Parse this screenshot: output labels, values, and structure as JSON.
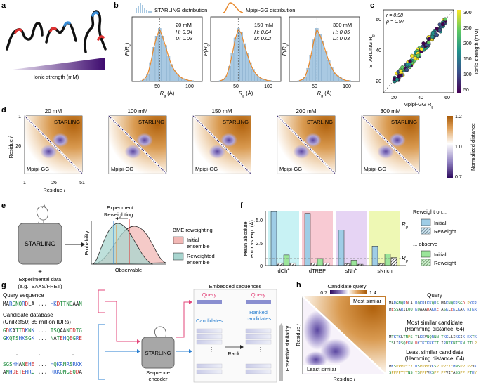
{
  "panels": {
    "a": {
      "label": "a",
      "axis": "Ionic strength (mM)"
    },
    "b": {
      "label": "b",
      "legend_starling": "STARLING distribution",
      "legend_mpipi": "Mpipi-GG distribution",
      "ylabel": "P(R",
      "ylabel_sub": "g",
      "ylabel_end": ")",
      "xlabel": "R",
      "xlabel_sub": "g",
      "xlabel_unit": " (Å)",
      "hists": [
        {
          "conc": "20 mM",
          "H": "H: 0.04",
          "D": "D: 0.03",
          "ticks": [
            "50",
            "100"
          ]
        },
        {
          "conc": "150 mM",
          "H": "H: 0.04",
          "D": "D: 0.02",
          "ticks": [
            "50",
            "100"
          ]
        },
        {
          "conc": "300 mM",
          "H": "H: 0.05",
          "D": "D: 0.03",
          "ticks": [
            "50",
            "100"
          ]
        }
      ],
      "colors": {
        "bar": "#a9c9e2",
        "line": "#e8882b"
      }
    },
    "c": {
      "label": "c",
      "r": "r = 0.98",
      "rho": "ρ = 0.97",
      "ylabel": "STARLING R",
      "ylabel_sub": "g",
      "xlabel": "Mpipi-GG R",
      "xlabel_sub": "g",
      "xticks": [
        "20",
        "40",
        "60"
      ],
      "yticks": [
        "20",
        "40",
        "60"
      ],
      "cbar_title": "Ionic strength (mM)",
      "cbar_ticks": [
        "300",
        "250",
        "200",
        "150",
        "100",
        "50"
      ]
    },
    "d": {
      "label": "d",
      "maps": [
        "20 mM",
        "100 mM",
        "150 mM",
        "200 mM",
        "300 mM"
      ],
      "starling": "STARLING",
      "mpipi": "Mpipi-GG",
      "ylabel": "Residue",
      "ylabel_i": "i",
      "xlabel": "Residue",
      "xlabel_i": "i",
      "ticks": [
        "1",
        "26"
      ],
      "xticks": [
        "1",
        "26",
        "51"
      ],
      "cbar_title": "Normalized distance",
      "cbar_ticks": [
        "1.2",
        "1.0",
        "0.7"
      ]
    },
    "e": {
      "label": "e",
      "box": "STARLING",
      "plus": "+",
      "exp1": "Experimental data",
      "exp2": "(e.g., SAXS/FRET)",
      "experiment": "Experiment",
      "reweighting": "Reweighting",
      "ylabel": "Probability",
      "xlabel": "Observable",
      "legend_title": "BME reweighting",
      "legend_initial1": "Initial",
      "legend_initial2": "ensemble",
      "legend_reweighted1": "Reweighted",
      "legend_reweighted2": "ensemble"
    },
    "f": {
      "label": "f",
      "ylabel1": "Mean absolute",
      "ylabel2": "error vs exp. (Å)",
      "yticks": [
        "5.0",
        "2.5",
        "0"
      ],
      "categories": [
        "dCh",
        "dTRBP",
        "sNh",
        "sNrich"
      ],
      "cat_sup": [
        "+",
        "",
        "+",
        ""
      ],
      "legend_title": "Reweight on...",
      "legend_rg": "R",
      "legend_rg_sub": "g",
      "legend_observe": "... observe",
      "legend_initial": "Initial",
      "legend_reweight": "Reweight"
    },
    "g": {
      "label": "g",
      "query_title": "Query sequence",
      "query": [
        "MARGNQRDLA",
        "...",
        "HKDTTNQAAN"
      ],
      "db_title": "Candidate database",
      "db_sub": "(UniRef50; 35 million IDRs)",
      "db_rows": [
        [
          "GDKATTDKNK",
          "...",
          "TSQAANDDTG"
        ],
        [
          "GKQTSHKSGK",
          "...",
          "NATEHQEGRE"
        ],
        [
          "SGSHHANEHE",
          "...",
          "HQKRNRSRKK"
        ],
        [
          "ANHDETEHRG",
          "...",
          "RRKQNGEQDA"
        ]
      ],
      "dots": "⋮",
      "encoder": "STARLING",
      "encoder1": "Sequence",
      "encoder2": "encoder",
      "embedded": "Embedded sequences",
      "q1": "Query",
      "q2": "Query",
      "cand": "Candidates",
      "ranked1": "Ranked",
      "ranked2": "candidates",
      "rank": "Rank",
      "similarity": "Ensemble similarity"
    },
    "h": {
      "label": "h",
      "cbar_title": "Candidate:query",
      "cbar_min": "0.7",
      "cbar_max": "1.4",
      "most": "Most similar",
      "least": "Least similar",
      "ylabel": "Residue",
      "ylabel_i": "j",
      "xlabel": "Residue",
      "xlabel_i": "i",
      "query_title": "Query",
      "query_seq": [
        "MARGNQRDLA RQKRLKKQRS MAKNQKRSGD PKKR",
        "MESSARILQQ KQAAADAKRE ASKLEKLKAK KTKR"
      ],
      "most_title1": "Most similar candidate",
      "most_title2": "(Hamming distance: 64)",
      "most_seq": [
        "MTKTKLTNPS TLKKVNQRNN TKKLLIKKIK KKTK",
        "TSLIRSQEKN DKIKTKKKTT IRNTKNTTKN TTLP"
      ],
      "least_title1": "Least similar candidate",
      "least_title2": "(Hamming distance: 64)",
      "least_seq": [
        "MKSPPPPYYY RSPPPPVKSP PPYYYHNSPP PPVK",
        "SPPPPYYYNS YSPPPVKSPP PPVIYASSPP PTHY"
      ]
    }
  }
}
